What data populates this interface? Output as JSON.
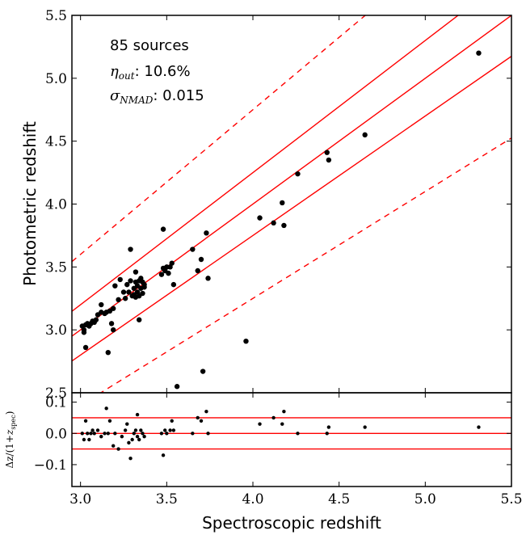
{
  "chart_data": [
    {
      "type": "scatter",
      "panel": "main",
      "xlabel": "Spectroscopic redshift",
      "ylabel": "Photometric redshift",
      "xlim": [
        2.95,
        5.5
      ],
      "ylim": [
        2.5,
        5.5
      ],
      "x_ticks": [
        "3.0",
        "3.5",
        "4.0",
        "4.5",
        "5.0",
        "5.5"
      ],
      "y_ticks": [
        "2.5",
        "3.0",
        "3.5",
        "4.0",
        "4.5",
        "5.0",
        "5.5"
      ],
      "annotations": {
        "sources": "85 sources",
        "eta_symbol": "η",
        "eta_sub": "out",
        "eta_value": ": 10.6%",
        "sigma_symbol": "σ",
        "sigma_sub": "NMAD",
        "sigma_value": ": 0.015"
      },
      "lines": [
        {
          "style": "solid",
          "relation": "1:1"
        },
        {
          "style": "solid",
          "relation": "+0.05(1+z)"
        },
        {
          "style": "solid",
          "relation": "-0.05(1+z)"
        },
        {
          "style": "dashed",
          "relation": "+0.15(1+z)"
        },
        {
          "style": "dashed",
          "relation": "-0.15(1+z)"
        }
      ],
      "line_color": "#ff0000",
      "point_color": "#000000",
      "points": [
        [
          3.01,
          3.03
        ],
        [
          3.02,
          3.0
        ],
        [
          3.02,
          2.98
        ],
        [
          3.03,
          2.86
        ],
        [
          3.03,
          3.04
        ],
        [
          3.04,
          3.05
        ],
        [
          3.05,
          3.03
        ],
        [
          3.06,
          3.05
        ],
        [
          3.07,
          3.07
        ],
        [
          3.08,
          3.06
        ],
        [
          3.09,
          3.08
        ],
        [
          3.1,
          3.12
        ],
        [
          3.12,
          3.14
        ],
        [
          3.12,
          3.2
        ],
        [
          3.14,
          3.13
        ],
        [
          3.15,
          3.14
        ],
        [
          3.16,
          2.82
        ],
        [
          3.17,
          3.15
        ],
        [
          3.18,
          3.05
        ],
        [
          3.19,
          3.0
        ],
        [
          3.19,
          3.17
        ],
        [
          3.2,
          3.35
        ],
        [
          3.22,
          3.24
        ],
        [
          3.23,
          3.4
        ],
        [
          3.25,
          3.3
        ],
        [
          3.26,
          3.25
        ],
        [
          3.27,
          3.36
        ],
        [
          3.28,
          3.3
        ],
        [
          3.29,
          3.39
        ],
        [
          3.29,
          3.64
        ],
        [
          3.3,
          3.27
        ],
        [
          3.31,
          3.28
        ],
        [
          3.31,
          3.33
        ],
        [
          3.32,
          3.26
        ],
        [
          3.32,
          3.38
        ],
        [
          3.32,
          3.46
        ],
        [
          3.33,
          3.35
        ],
        [
          3.33,
          3.3
        ],
        [
          3.34,
          3.39
        ],
        [
          3.34,
          3.27
        ],
        [
          3.34,
          3.08
        ],
        [
          3.35,
          3.33
        ],
        [
          3.35,
          3.41
        ],
        [
          3.36,
          3.38
        ],
        [
          3.36,
          3.29
        ],
        [
          3.37,
          3.34
        ],
        [
          3.37,
          3.36
        ],
        [
          3.47,
          3.44
        ],
        [
          3.48,
          3.49
        ],
        [
          3.48,
          3.8
        ],
        [
          3.49,
          3.47
        ],
        [
          3.5,
          3.5
        ],
        [
          3.51,
          3.45
        ],
        [
          3.52,
          3.5
        ],
        [
          3.53,
          3.53
        ],
        [
          3.54,
          3.36
        ],
        [
          3.56,
          2.55
        ],
        [
          3.65,
          3.64
        ],
        [
          3.68,
          3.47
        ],
        [
          3.7,
          3.56
        ],
        [
          3.71,
          2.67
        ],
        [
          3.73,
          3.77
        ],
        [
          3.74,
          3.41
        ],
        [
          3.96,
          2.91
        ],
        [
          4.04,
          3.89
        ],
        [
          4.12,
          3.85
        ],
        [
          4.17,
          4.01
        ],
        [
          4.18,
          3.83
        ],
        [
          4.26,
          4.24
        ],
        [
          4.43,
          4.41
        ],
        [
          4.44,
          4.35
        ],
        [
          4.65,
          4.55
        ],
        [
          5.31,
          5.2
        ]
      ]
    },
    {
      "type": "scatter",
      "panel": "residual",
      "xlabel": "Spectroscopic redshift",
      "ylabel_formula": "Δz/(1+z_spec)",
      "ylabel_parts": {
        "pre": "Δz/(1+",
        "z": "z",
        "sub": "spec",
        "post": ")"
      },
      "xlim": [
        2.95,
        5.5
      ],
      "ylim": [
        -0.17,
        0.13
      ],
      "y_ticks": [
        "0.1",
        "0.0",
        "−0.1"
      ],
      "y_tick_values": [
        0.1,
        0.0,
        -0.1
      ],
      "hlines": [
        0.05,
        0.0,
        -0.05
      ],
      "points": [
        [
          3.01,
          0.0
        ],
        [
          3.02,
          -0.02
        ],
        [
          3.03,
          0.04
        ],
        [
          3.04,
          0.0
        ],
        [
          3.05,
          -0.02
        ],
        [
          3.06,
          0.0
        ],
        [
          3.07,
          0.01
        ],
        [
          3.08,
          0.0
        ],
        [
          3.1,
          0.01
        ],
        [
          3.12,
          -0.01
        ],
        [
          3.14,
          0.0
        ],
        [
          3.15,
          0.08
        ],
        [
          3.16,
          0.0
        ],
        [
          3.17,
          0.04
        ],
        [
          3.19,
          -0.04
        ],
        [
          3.2,
          0.0
        ],
        [
          3.22,
          -0.05
        ],
        [
          3.24,
          -0.01
        ],
        [
          3.26,
          0.01
        ],
        [
          3.27,
          0.03
        ],
        [
          3.28,
          -0.03
        ],
        [
          3.29,
          -0.08
        ],
        [
          3.3,
          -0.02
        ],
        [
          3.31,
          0.0
        ],
        [
          3.32,
          0.01
        ],
        [
          3.33,
          0.06
        ],
        [
          3.33,
          -0.01
        ],
        [
          3.34,
          -0.02
        ],
        [
          3.35,
          0.01
        ],
        [
          3.36,
          0.0
        ],
        [
          3.37,
          -0.01
        ],
        [
          3.47,
          0.0
        ],
        [
          3.48,
          -0.07
        ],
        [
          3.49,
          0.01
        ],
        [
          3.5,
          0.0
        ],
        [
          3.52,
          0.01
        ],
        [
          3.53,
          0.04
        ],
        [
          3.54,
          0.01
        ],
        [
          3.65,
          0.0
        ],
        [
          3.68,
          0.05
        ],
        [
          3.7,
          0.04
        ],
        [
          3.73,
          0.07
        ],
        [
          3.74,
          0.0
        ],
        [
          4.04,
          0.03
        ],
        [
          4.12,
          0.05
        ],
        [
          4.17,
          0.03
        ],
        [
          4.18,
          0.07
        ],
        [
          4.26,
          0.0
        ],
        [
          4.43,
          0.0
        ],
        [
          4.44,
          0.02
        ],
        [
          4.65,
          0.02
        ],
        [
          5.31,
          0.02
        ]
      ]
    }
  ]
}
